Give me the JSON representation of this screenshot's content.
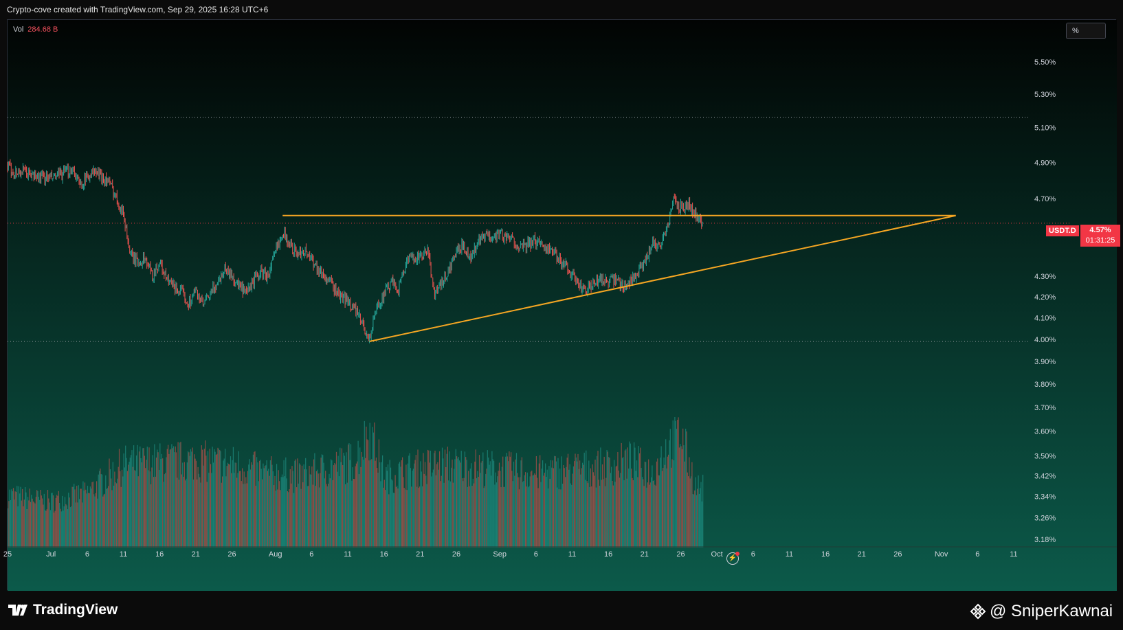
{
  "attribution": "Crypto-cove created with TradingView.com, Sep 29, 2025 16:28 UTC+6",
  "volume": {
    "label": "Vol",
    "value": "284.68 B"
  },
  "scale_button": "%",
  "price_label": {
    "symbol": "USDT.D",
    "value": "4.57%",
    "countdown": "01:31:25"
  },
  "branding": {
    "logo_text": "TradingView",
    "watermark": "@ SniperKawnai"
  },
  "colors": {
    "up": "#26a69a",
    "down": "#ef5350",
    "trendline": "#f5a623",
    "last_price": "#f23645",
    "axis_text": "#d1d4dc"
  },
  "icons": [
    "tradingview-logo-icon",
    "replay-icon",
    "binance-diamond-icon"
  ],
  "chart_data": {
    "type": "candlestick",
    "symbol": "USDT.D",
    "y_scale": "log",
    "ylim": [
      3.14,
      5.77
    ],
    "y_ticks": [
      {
        "value": 5.5,
        "label": "5.50%"
      },
      {
        "value": 5.3,
        "label": "5.30%"
      },
      {
        "value": 5.1,
        "label": "5.10%"
      },
      {
        "value": 4.9,
        "label": "4.90%"
      },
      {
        "value": 4.7,
        "label": "4.70%"
      },
      {
        "value": 4.3,
        "label": "4.30%"
      },
      {
        "value": 4.2,
        "label": "4.20%"
      },
      {
        "value": 4.1,
        "label": "4.10%"
      },
      {
        "value": 4.0,
        "label": "4.00%"
      },
      {
        "value": 3.9,
        "label": "3.90%"
      },
      {
        "value": 3.8,
        "label": "3.80%"
      },
      {
        "value": 3.7,
        "label": "3.70%"
      },
      {
        "value": 3.6,
        "label": "3.60%"
      },
      {
        "value": 3.5,
        "label": "3.50%"
      },
      {
        "value": 3.42,
        "label": "3.42%"
      },
      {
        "value": 3.34,
        "label": "3.34%"
      },
      {
        "value": 3.26,
        "label": "3.26%"
      },
      {
        "value": 3.18,
        "label": "3.18%"
      }
    ],
    "xlim": [
      "2025-06-25",
      "2025-11-13"
    ],
    "x_ticks": [
      {
        "date": "2025-06-25",
        "label": "25"
      },
      {
        "date": "2025-07-01",
        "label": "Jul"
      },
      {
        "date": "2025-07-06",
        "label": "6"
      },
      {
        "date": "2025-07-11",
        "label": "11"
      },
      {
        "date": "2025-07-16",
        "label": "16"
      },
      {
        "date": "2025-07-21",
        "label": "21"
      },
      {
        "date": "2025-07-26",
        "label": "26"
      },
      {
        "date": "2025-08-01",
        "label": "Aug"
      },
      {
        "date": "2025-08-06",
        "label": "6"
      },
      {
        "date": "2025-08-11",
        "label": "11"
      },
      {
        "date": "2025-08-16",
        "label": "16"
      },
      {
        "date": "2025-08-21",
        "label": "21"
      },
      {
        "date": "2025-08-26",
        "label": "26"
      },
      {
        "date": "2025-09-01",
        "label": "Sep"
      },
      {
        "date": "2025-09-06",
        "label": "6"
      },
      {
        "date": "2025-09-11",
        "label": "11"
      },
      {
        "date": "2025-09-16",
        "label": "16"
      },
      {
        "date": "2025-09-21",
        "label": "21"
      },
      {
        "date": "2025-09-26",
        "label": "26"
      },
      {
        "date": "2025-10-01",
        "label": "Oct"
      },
      {
        "date": "2025-10-06",
        "label": "6"
      },
      {
        "date": "2025-10-11",
        "label": "11"
      },
      {
        "date": "2025-10-16",
        "label": "16"
      },
      {
        "date": "2025-10-21",
        "label": "21"
      },
      {
        "date": "2025-10-26",
        "label": "26"
      },
      {
        "date": "2025-11-01",
        "label": "Nov"
      },
      {
        "date": "2025-11-06",
        "label": "6"
      },
      {
        "date": "2025-11-11",
        "label": "11"
      }
    ],
    "price_path": [
      [
        "2025-06-25",
        4.88
      ],
      [
        "2025-06-26",
        4.84
      ],
      [
        "2025-06-27",
        4.85
      ],
      [
        "2025-06-29",
        4.82
      ],
      [
        "2025-07-01",
        4.81
      ],
      [
        "2025-07-03",
        4.84
      ],
      [
        "2025-07-04",
        4.87
      ],
      [
        "2025-07-05",
        4.77
      ],
      [
        "2025-07-06",
        4.82
      ],
      [
        "2025-07-07",
        4.85
      ],
      [
        "2025-07-09",
        4.79
      ],
      [
        "2025-07-10",
        4.71
      ],
      [
        "2025-07-11",
        4.62
      ],
      [
        "2025-07-12",
        4.4
      ],
      [
        "2025-07-13",
        4.37
      ],
      [
        "2025-07-14",
        4.39
      ],
      [
        "2025-07-15",
        4.3
      ],
      [
        "2025-07-16",
        4.37
      ],
      [
        "2025-07-17",
        4.28
      ],
      [
        "2025-07-19",
        4.22
      ],
      [
        "2025-07-20",
        4.17
      ],
      [
        "2025-07-21",
        4.23
      ],
      [
        "2025-07-22",
        4.16
      ],
      [
        "2025-07-23",
        4.21
      ],
      [
        "2025-07-24",
        4.27
      ],
      [
        "2025-07-25",
        4.34
      ],
      [
        "2025-07-26",
        4.3
      ],
      [
        "2025-07-27",
        4.25
      ],
      [
        "2025-07-28",
        4.21
      ],
      [
        "2025-07-29",
        4.28
      ],
      [
        "2025-07-30",
        4.32
      ],
      [
        "2025-07-31",
        4.3
      ],
      [
        "2025-08-01",
        4.42
      ],
      [
        "2025-08-02",
        4.53
      ],
      [
        "2025-08-03",
        4.46
      ],
      [
        "2025-08-04",
        4.41
      ],
      [
        "2025-08-05",
        4.43
      ],
      [
        "2025-08-06",
        4.39
      ],
      [
        "2025-08-07",
        4.33
      ],
      [
        "2025-08-08",
        4.29
      ],
      [
        "2025-08-09",
        4.25
      ],
      [
        "2025-08-10",
        4.2
      ],
      [
        "2025-08-11",
        4.18
      ],
      [
        "2025-08-12",
        4.14
      ],
      [
        "2025-08-13",
        4.07
      ],
      [
        "2025-08-14",
        4.0
      ],
      [
        "2025-08-15",
        4.15
      ],
      [
        "2025-08-16",
        4.21
      ],
      [
        "2025-08-17",
        4.27
      ],
      [
        "2025-08-18",
        4.24
      ],
      [
        "2025-08-19",
        4.36
      ],
      [
        "2025-08-20",
        4.4
      ],
      [
        "2025-08-21",
        4.39
      ],
      [
        "2025-08-22",
        4.43
      ],
      [
        "2025-08-23",
        4.22
      ],
      [
        "2025-08-24",
        4.26
      ],
      [
        "2025-08-25",
        4.33
      ],
      [
        "2025-08-26",
        4.42
      ],
      [
        "2025-08-27",
        4.46
      ],
      [
        "2025-08-28",
        4.39
      ],
      [
        "2025-08-29",
        4.47
      ],
      [
        "2025-08-30",
        4.5
      ],
      [
        "2025-08-31",
        4.5
      ],
      [
        "2025-09-01",
        4.52
      ],
      [
        "2025-09-02",
        4.49
      ],
      [
        "2025-09-03",
        4.48
      ],
      [
        "2025-09-04",
        4.44
      ],
      [
        "2025-09-05",
        4.46
      ],
      [
        "2025-09-06",
        4.48
      ],
      [
        "2025-09-07",
        4.46
      ],
      [
        "2025-09-08",
        4.43
      ],
      [
        "2025-09-09",
        4.39
      ],
      [
        "2025-09-10",
        4.36
      ],
      [
        "2025-09-11",
        4.31
      ],
      [
        "2025-09-12",
        4.25
      ],
      [
        "2025-09-13",
        4.23
      ],
      [
        "2025-09-14",
        4.26
      ],
      [
        "2025-09-15",
        4.29
      ],
      [
        "2025-09-16",
        4.27
      ],
      [
        "2025-09-17",
        4.28
      ],
      [
        "2025-09-18",
        4.25
      ],
      [
        "2025-09-19",
        4.28
      ],
      [
        "2025-09-20",
        4.31
      ],
      [
        "2025-09-21",
        4.36
      ],
      [
        "2025-09-22",
        4.47
      ],
      [
        "2025-09-23",
        4.45
      ],
      [
        "2025-09-24",
        4.53
      ],
      [
        "2025-09-25",
        4.69
      ],
      [
        "2025-09-26",
        4.65
      ],
      [
        "2025-09-27",
        4.67
      ],
      [
        "2025-09-28",
        4.62
      ],
      [
        "2025-09-29",
        4.57
      ]
    ],
    "volume_ylim": [
      0,
      300
    ],
    "volume_path": [
      [
        "2025-06-25",
        120
      ],
      [
        "2025-07-01",
        105
      ],
      [
        "2025-07-06",
        125
      ],
      [
        "2025-07-11",
        190
      ],
      [
        "2025-07-16",
        195
      ],
      [
        "2025-07-21",
        200
      ],
      [
        "2025-07-26",
        190
      ],
      [
        "2025-07-31",
        170
      ],
      [
        "2025-08-04",
        165
      ],
      [
        "2025-08-08",
        180
      ],
      [
        "2025-08-12",
        200
      ],
      [
        "2025-08-14",
        270
      ],
      [
        "2025-08-16",
        160
      ],
      [
        "2025-08-20",
        180
      ],
      [
        "2025-08-24",
        190
      ],
      [
        "2025-08-28",
        185
      ],
      [
        "2025-09-01",
        180
      ],
      [
        "2025-09-06",
        170
      ],
      [
        "2025-09-11",
        180
      ],
      [
        "2025-09-16",
        185
      ],
      [
        "2025-09-19",
        200
      ],
      [
        "2025-09-22",
        170
      ],
      [
        "2025-09-24",
        230
      ],
      [
        "2025-09-26",
        260
      ],
      [
        "2025-09-28",
        140
      ],
      [
        "2025-09-29",
        135
      ]
    ],
    "last_price": 4.57,
    "last_date": "2025-09-29",
    "horizontal_levels": [
      5.16,
      3.99
    ],
    "drawings": [
      {
        "type": "trendline",
        "from": [
          "2025-08-02",
          4.61
        ],
        "to": [
          "2025-11-03",
          4.61
        ]
      },
      {
        "type": "trendline",
        "from": [
          "2025-08-14",
          3.99
        ],
        "to": [
          "2025-11-03",
          4.61
        ]
      }
    ]
  }
}
